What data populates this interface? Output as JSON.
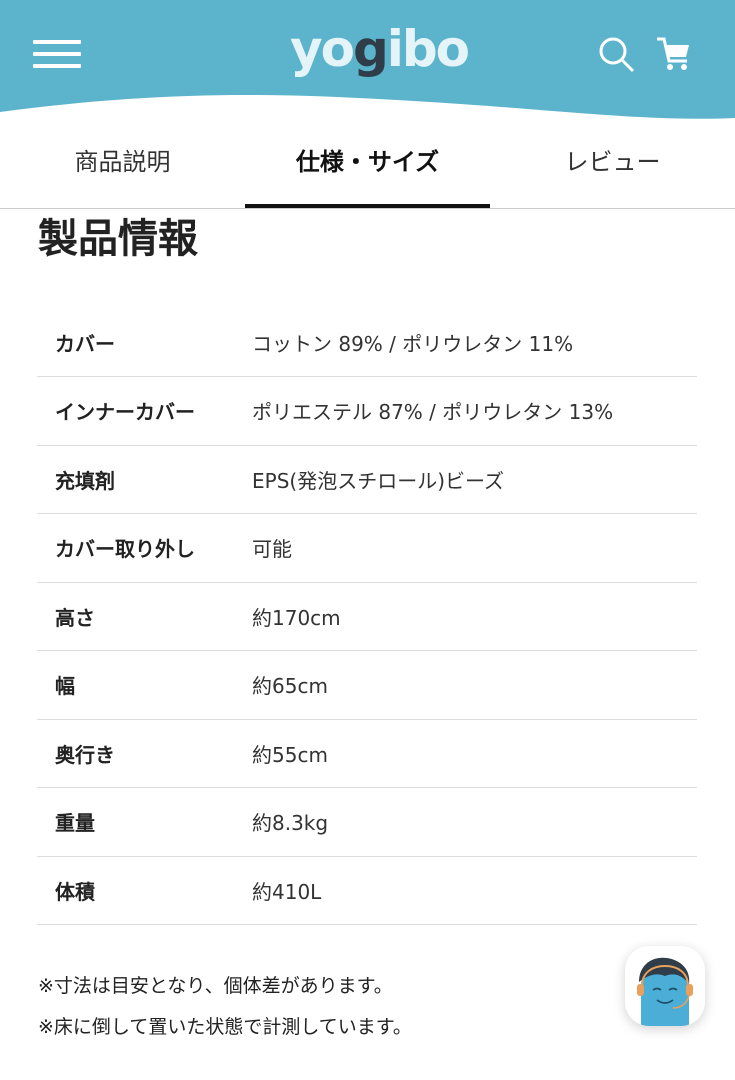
{
  "header": {
    "logo": "yogibo",
    "brand_color": "#5bb4cc",
    "icons": [
      "hamburger-menu-icon",
      "search-icon",
      "cart-icon"
    ]
  },
  "tabs": [
    {
      "label": "商品説明",
      "active": false
    },
    {
      "label": "仕様・サイズ",
      "active": true
    },
    {
      "label": "レビュー",
      "active": false
    }
  ],
  "section_title": "製品情報",
  "specs": [
    {
      "label": "カバー",
      "value": "コットン 89% / ポリウレタン 11%"
    },
    {
      "label": "インナーカバー",
      "value": "ポリエステル 87% / ポリウレタン 13%"
    },
    {
      "label": "充填剤",
      "value": "EPS(発泡スチロール)ビーズ"
    },
    {
      "label": "カバー取り外し",
      "value": "可能"
    },
    {
      "label": "高さ",
      "value": "約170cm"
    },
    {
      "label": "幅",
      "value": "約65cm"
    },
    {
      "label": "奥行き",
      "value": "約55cm"
    },
    {
      "label": "重量",
      "value": "約8.3kg"
    },
    {
      "label": "体積",
      "value": "約410L"
    }
  ],
  "notes": [
    "※寸法は目安となり、個体差があります。",
    "※床に倒して置いた状態で計測しています。"
  ]
}
